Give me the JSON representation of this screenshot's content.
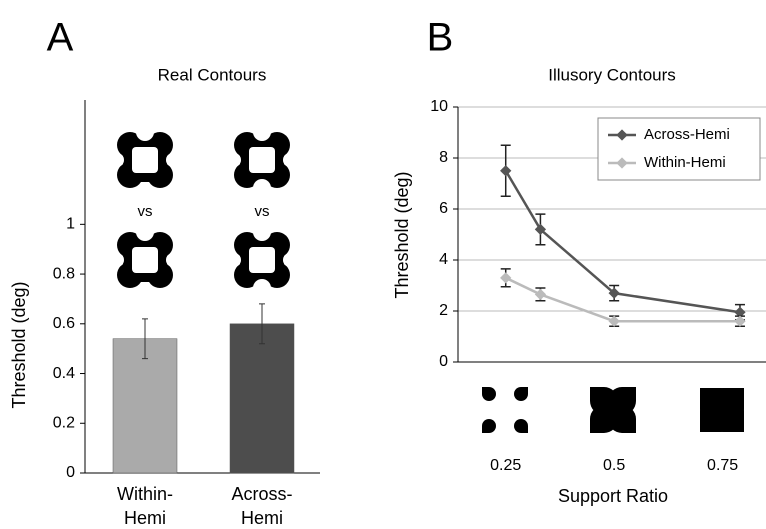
{
  "chart_data": [
    {
      "type": "bar",
      "panel_label": "A",
      "title": "Real Contours",
      "ylabel": "Threshold (deg)",
      "categories": [
        "Within-\nHemi",
        "Across-\nHemi"
      ],
      "values": [
        0.54,
        0.6
      ],
      "errors": [
        0.08,
        0.08
      ],
      "colors": [
        "#aaaaaa",
        "#4d4d4d"
      ],
      "ylim": [
        0,
        1.5
      ],
      "yticks": [
        0,
        0.2,
        0.4,
        0.6,
        0.8,
        1
      ],
      "annotations": [
        "vs",
        "vs"
      ]
    },
    {
      "type": "line",
      "panel_label": "B",
      "title": "Illusory Contours",
      "ylabel": "Threshold (deg)",
      "xlabel": "Support Ratio",
      "x": [
        0.25,
        0.33,
        0.5,
        0.79
      ],
      "series": [
        {
          "name": "Across-Hemi",
          "color": "#555555",
          "values": [
            7.5,
            5.2,
            2.7,
            1.95
          ],
          "errors": [
            1.0,
            0.6,
            0.3,
            0.3
          ]
        },
        {
          "name": "Within-Hemi",
          "color": "#bbbbbb",
          "values": [
            3.3,
            2.65,
            1.6,
            1.6
          ],
          "errors": [
            0.35,
            0.25,
            0.2,
            0.2
          ]
        }
      ],
      "xlim": [
        0.14,
        0.85
      ],
      "xticks": [
        0.25,
        0.5,
        0.75
      ],
      "ylim": [
        0,
        10
      ],
      "yticks": [
        0,
        2,
        4,
        6,
        8,
        10
      ],
      "grid": true,
      "legend": "top-right"
    }
  ]
}
